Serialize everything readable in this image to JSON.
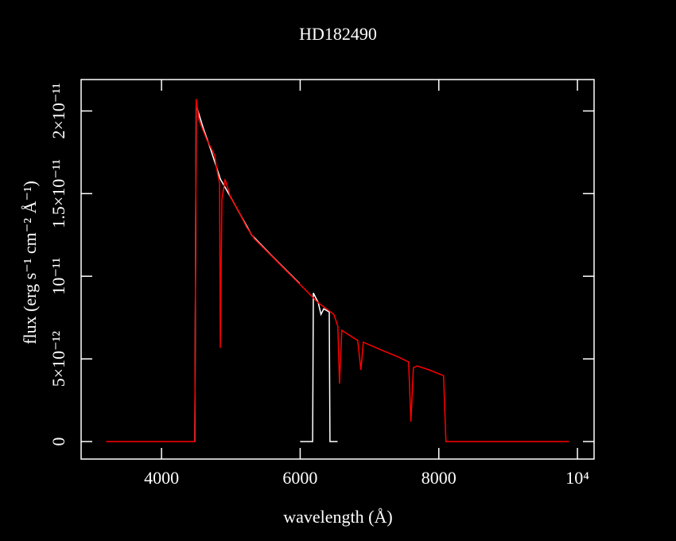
{
  "chart_data": {
    "type": "line",
    "title": "HD182490",
    "x_label": "wavelength (Å)",
    "y_label": "flux (erg s⁻¹ cm⁻² Å⁻¹)",
    "xlim": [
      2840,
      10240
    ],
    "ylim": [
      -1.06e-12,
      2.19e-11
    ],
    "xticks": [
      4000,
      6000,
      8000,
      {
        "value": 10000,
        "label": "10⁴"
      }
    ],
    "yticks": [
      0,
      {
        "value": 5e-12,
        "label": "5×10⁻¹²"
      },
      {
        "value": 1e-11,
        "label": "10⁻¹¹"
      },
      {
        "value": 1.5e-11,
        "label": "1.5×10⁻¹¹"
      },
      {
        "value": 2e-11,
        "label": "2×10⁻¹¹"
      }
    ],
    "series": [
      {
        "color": "#ffffff",
        "x": [
          4481,
          4500,
          4600,
          4700,
          4850,
          5000,
          5300,
          5600,
          5990,
          5995,
          6000,
          6180,
          6190,
          6260,
          6300,
          6340,
          6420,
          6430,
          6540
        ],
        "values": [
          0,
          2.034e-11,
          1.899e-11,
          1.779e-11,
          1.587e-11,
          1.476e-11,
          1.25e-11,
          1.12e-11,
          9.57e-12,
          null,
          0,
          0,
          8.99e-12,
          8.41e-12,
          7.69e-12,
          8.03e-12,
          7.84e-12,
          0,
          0
        ]
      },
      {
        "color": "#ff0000",
        "x": [
          3200,
          4481,
          4500,
          4539,
          4653,
          4768,
          4791,
          4837,
          4848,
          4871,
          4917,
          4997,
          5112,
          5226,
          5341,
          5570,
          5799,
          6028,
          6258,
          6487,
          6544,
          6567,
          6601,
          6830,
          6876,
          6910,
          7174,
          7403,
          7564,
          7598,
          7633,
          7690,
          7862,
          8068,
          8103,
          9880
        ],
        "values": [
          0,
          0,
          2.072e-11,
          1.947e-11,
          1.827e-11,
          1.731e-11,
          1.659e-11,
          1.563e-11,
          5.67e-12,
          1.466e-11,
          1.587e-11,
          1.476e-11,
          1.394e-11,
          1.298e-11,
          1.226e-11,
          1.13e-11,
          1.034e-11,
          9.38e-12,
          8.41e-12,
          7.69e-12,
          6.97e-12,
          3.51e-12,
          6.73e-12,
          6.11e-12,
          4.33e-12,
          6.01e-12,
          5.53e-12,
          5.14e-12,
          4.81e-12,
          1.2e-12,
          4.47e-12,
          4.57e-12,
          4.33e-12,
          3.99e-12,
          0,
          0
        ]
      }
    ]
  }
}
